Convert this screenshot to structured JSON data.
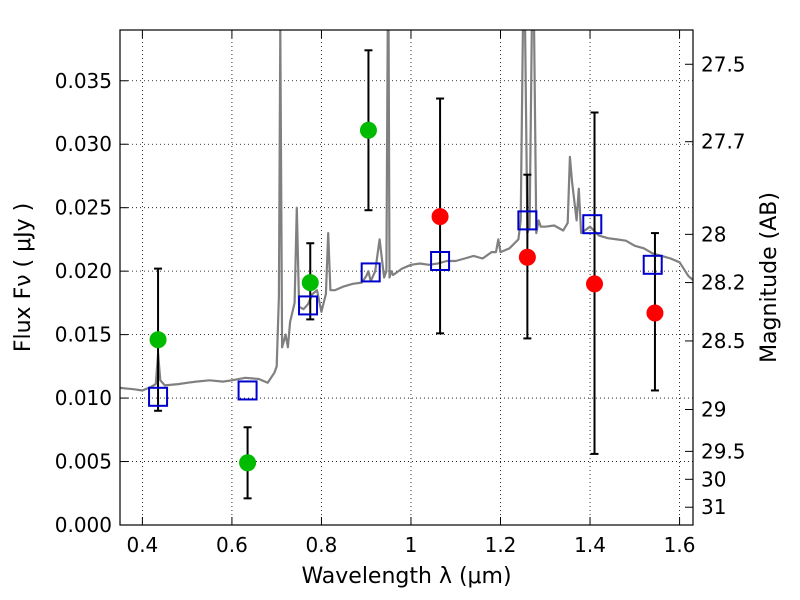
{
  "chart_data": {
    "type": "scatter",
    "title": "",
    "xlabel": "Wavelength  λ (μm)",
    "ylabel": "Flux  Fν  ( μJy )",
    "y2label": "Magnitude (AB)",
    "xlim": [
      0.35,
      1.63
    ],
    "ylim": [
      0.0,
      0.039
    ],
    "grid": true,
    "legend": "none",
    "x_ticks": [
      0.4,
      0.6,
      0.8,
      1.0,
      1.2,
      1.4,
      1.6
    ],
    "x_tick_labels": [
      "0.4",
      "0.6",
      "0.8",
      "1",
      "1.2",
      "1.4",
      "1.6"
    ],
    "y_ticks": [
      0.0,
      0.005,
      0.01,
      0.015,
      0.02,
      0.025,
      0.03,
      0.035
    ],
    "y_tick_labels": [
      "0.000",
      "0.005",
      "0.010",
      "0.015",
      "0.020",
      "0.025",
      "0.030",
      "0.035"
    ],
    "y2_ticks": [
      {
        "label": "27.5",
        "flux": 0.0363
      },
      {
        "label": "27.7",
        "flux": 0.0302
      },
      {
        "label": "28",
        "flux": 0.0229
      },
      {
        "label": "28.2",
        "flux": 0.0191
      },
      {
        "label": "28.5",
        "flux": 0.0145
      },
      {
        "label": "29",
        "flux": 0.0091
      },
      {
        "label": "29.5",
        "flux": 0.0058
      },
      {
        "label": "30",
        "flux": 0.0036
      },
      {
        "label": "31",
        "flux": 0.0014
      }
    ],
    "series": [
      {
        "type": "spectrum",
        "color": "#808080",
        "x": [
          0.35,
          0.38,
          0.4,
          0.42,
          0.43,
          0.435,
          0.44,
          0.45,
          0.48,
          0.5,
          0.52,
          0.55,
          0.58,
          0.6,
          0.63,
          0.66,
          0.68,
          0.695,
          0.7,
          0.705,
          0.708,
          0.712,
          0.72,
          0.725,
          0.73,
          0.74,
          0.745,
          0.75,
          0.76,
          0.77,
          0.78,
          0.79,
          0.8,
          0.81,
          0.815,
          0.82,
          0.83,
          0.85,
          0.87,
          0.89,
          0.9,
          0.905,
          0.91,
          0.92,
          0.93,
          0.94,
          0.945,
          0.948,
          0.95,
          0.952,
          0.956,
          0.96,
          0.98,
          1.0,
          1.02,
          1.04,
          1.06,
          1.08,
          1.1,
          1.12,
          1.14,
          1.16,
          1.18,
          1.19,
          1.195,
          1.2,
          1.22,
          1.24,
          1.245,
          1.25,
          1.255,
          1.26,
          1.265,
          1.27,
          1.275,
          1.28,
          1.285,
          1.29,
          1.3,
          1.32,
          1.34,
          1.35,
          1.355,
          1.36,
          1.37,
          1.375,
          1.38,
          1.4,
          1.42,
          1.44,
          1.46,
          1.48,
          1.5,
          1.52,
          1.54,
          1.56,
          1.58,
          1.6,
          1.62,
          1.63
        ],
        "y": [
          0.0108,
          0.0107,
          0.0106,
          0.0109,
          0.0111,
          0.0135,
          0.0114,
          0.011,
          0.0111,
          0.0112,
          0.0113,
          0.0114,
          0.0113,
          0.0114,
          0.0116,
          0.0115,
          0.0112,
          0.012,
          0.0125,
          0.018,
          0.039,
          0.014,
          0.015,
          0.014,
          0.016,
          0.0175,
          0.025,
          0.0172,
          0.017,
          0.0174,
          0.0182,
          0.0185,
          0.0168,
          0.0182,
          0.023,
          0.0185,
          0.0185,
          0.0188,
          0.019,
          0.0191,
          0.0196,
          0.02,
          0.0192,
          0.02,
          0.0225,
          0.0195,
          0.02,
          0.039,
          0.039,
          0.0195,
          0.02,
          0.0197,
          0.0202,
          0.0205,
          0.0206,
          0.0205,
          0.0206,
          0.0208,
          0.0208,
          0.021,
          0.0212,
          0.021,
          0.0215,
          0.0215,
          0.0225,
          0.0215,
          0.0218,
          0.0225,
          0.024,
          0.039,
          0.039,
          0.023,
          0.0235,
          0.039,
          0.039,
          0.023,
          0.024,
          0.0235,
          0.0235,
          0.0236,
          0.0232,
          0.0238,
          0.029,
          0.027,
          0.024,
          0.0265,
          0.023,
          0.0235,
          0.0228,
          0.0226,
          0.0225,
          0.0224,
          0.022,
          0.0218,
          0.0214,
          0.0212,
          0.021,
          0.0207,
          0.0196,
          0.0193
        ]
      },
      {
        "type": "points",
        "marker": "circle",
        "color": "#00bb00",
        "x": [
          0.435,
          0.635,
          0.775,
          0.905
        ],
        "y": [
          0.0146,
          0.0049,
          0.0191,
          0.0311
        ],
        "yerr_low": [
          0.009,
          0.0021,
          0.0162,
          0.0248
        ],
        "yerr_high": [
          0.0202,
          0.0077,
          0.0222,
          0.0374
        ]
      },
      {
        "type": "points",
        "marker": "circle",
        "color": "#ff0000",
        "x": [
          1.065,
          1.26,
          1.41,
          1.545
        ],
        "y": [
          0.0243,
          0.0211,
          0.019,
          0.0167
        ],
        "yerr_low": [
          0.0151,
          0.0147,
          0.0056,
          0.0106
        ],
        "yerr_high": [
          0.0336,
          0.0276,
          0.0325,
          0.023
        ]
      },
      {
        "type": "points",
        "marker": "square-open",
        "color": "#0000cc",
        "x": [
          0.435,
          0.635,
          0.77,
          0.91,
          1.065,
          1.26,
          1.405,
          1.54
        ],
        "y": [
          0.0101,
          0.0106,
          0.0173,
          0.0199,
          0.0208,
          0.024,
          0.0237,
          0.0205
        ]
      }
    ]
  }
}
